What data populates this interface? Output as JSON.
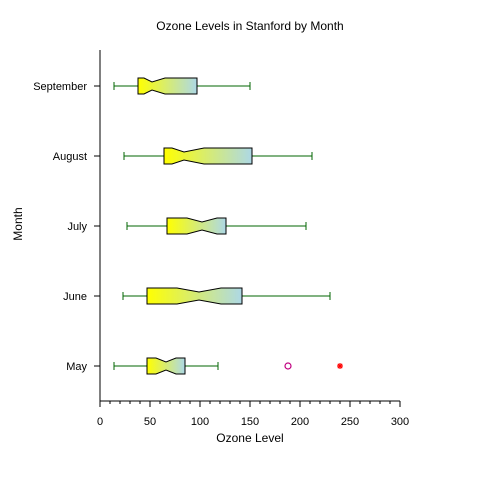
{
  "chart_data": {
    "type": "boxplot",
    "orientation": "horizontal",
    "notched": true,
    "title": "Ozone Levels in Stanford by Month",
    "xlabel": "Ozone Level",
    "ylabel": "Month",
    "xlim": [
      0,
      300
    ],
    "xticks": [
      0,
      50,
      100,
      150,
      200,
      250,
      300
    ],
    "categories": [
      "May",
      "June",
      "July",
      "August",
      "September"
    ],
    "boxes": [
      {
        "category": "May",
        "whisker_low": 14,
        "q1": 47,
        "notch_low": 56,
        "median": 66,
        "notch_high": 76,
        "q3": 85,
        "whisker_high": 118,
        "outliers": [
          188
        ],
        "far_outliers": [
          240
        ]
      },
      {
        "category": "June",
        "whisker_low": 23,
        "q1": 47,
        "notch_low": 77,
        "median": 99,
        "notch_high": 121,
        "q3": 142,
        "whisker_high": 230,
        "outliers": [],
        "far_outliers": []
      },
      {
        "category": "July",
        "whisker_low": 27,
        "q1": 67,
        "notch_low": 87,
        "median": 102,
        "notch_high": 117,
        "q3": 126,
        "whisker_high": 206,
        "outliers": [],
        "far_outliers": []
      },
      {
        "category": "August",
        "whisker_low": 24,
        "q1": 64,
        "notch_low": 72,
        "median": 84,
        "notch_high": 104,
        "q3": 152,
        "whisker_high": 212,
        "outliers": [],
        "far_outliers": []
      },
      {
        "category": "September",
        "whisker_low": 14,
        "q1": 38,
        "notch_low": 44,
        "median": 52,
        "notch_high": 65,
        "q3": 97,
        "whisker_high": 150,
        "outliers": [],
        "far_outliers": []
      }
    ],
    "colors": {
      "fill_start": "#ffff00",
      "fill_end": "#add8e6",
      "whisker": "#006400",
      "outlier": "#c00080",
      "far_outlier": "#ff0000",
      "axis": "#000000"
    }
  }
}
